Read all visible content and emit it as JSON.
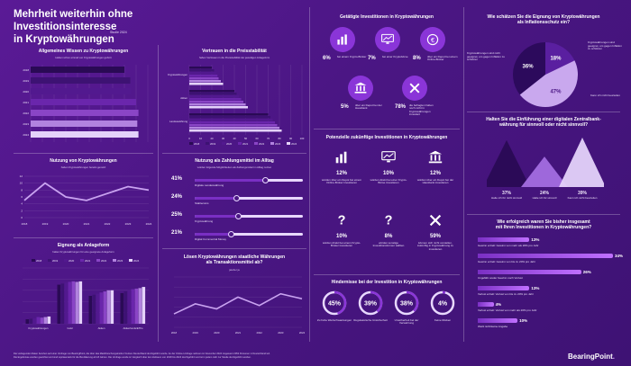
{
  "header": {
    "title_line1": "Mehrheit weiterhin ohne Investitionsinteresse",
    "title_line2": "in Kryptowährungen",
    "study": "Studie 2024"
  },
  "colors": {
    "bg": "#4b1784",
    "accent": "#8a35d8",
    "light": "#e8d8ff",
    "mid": "#b07ae8",
    "dark": "#2c0a5c"
  },
  "footer": {
    "line1": "Die vorliegenden Daten beruhen auf einer Umfrage von BearingPoint, die über das Marktforschungsinstitut YouGov Deutschland durchgeführt wurde. An der Online-Umfrage nahmen im November 2024 insgesamt 2052 Personen in Deutschland teil.",
    "line2": "Die Ergebnisse wurden gewichtet und sind repräsentativ für die Bevölkerung ab 18 Jahren. Die Umfrage wurde im Vergleich über den Zeitraum von 2018 bis 2024 durchgeführt und ist in jedem Jahr zur Studie durchgeführt worden."
  },
  "logo": {
    "name": "BearingPoint",
    "dot": "."
  },
  "panels": {
    "wissen": {
      "title": "Allgemeines Wissen zu Kryptowährungen",
      "sub": "Haben schon einmal von Kryptowährungen gehört"
    },
    "nutzung": {
      "title": "Nutzung von Kryptowährungen",
      "sub": "haben Kryptowährungen bereits genutzt"
    },
    "eignung": {
      "title": "Eignung als Anlageform",
      "sub": "halten Kryptowährungen für eine geeignete Anlageform"
    },
    "vertrauen": {
      "title": "Vertrauen in die Preisstabilität",
      "sub": "haben Vertrauen in die Preisstabilität der jeweiligen Anlageform",
      "legend": [
        "Kryptowährungen",
        "Aktien",
        "Landeswährung"
      ]
    },
    "zahlung": {
      "title": "Nutzung als Zahlungsmittel im Alltag",
      "sub": "würden folgende Möglichkeiten als Zahlungsmittel im Alltag nutzen",
      "items": [
        {
          "pct": "41%",
          "label": "Digitale Landeswährung",
          "level": 0.41
        },
        {
          "pct": "24%",
          "label": "Stablecoins",
          "level": 0.24
        },
        {
          "pct": "25%",
          "label": "Kryptowährung",
          "level": 0.25
        },
        {
          "pct": "21%",
          "label": "Digital Commercial Money",
          "level": 0.21
        }
      ]
    },
    "loesen": {
      "title": "Lösen Kryptowährungen staatliche Währungen",
      "title2": "als Transaktionsmittel ab?",
      "sub": "ja/eher ja"
    },
    "getaetigt": {
      "title": "Getätigte Investitionen in Kryptowährungen",
      "items": [
        {
          "pct": "6%",
          "label": "bei einem Krypto-Broker"
        },
        {
          "pct": "7%",
          "label": "bei einer Kryptobörse"
        },
        {
          "pct": "8%",
          "label": "über ein Depot bei einem Online-Broker"
        },
        {
          "pct": "5%",
          "label": "über ein Depot bei der Hausbank"
        },
        {
          "pct": "78%",
          "label": "die befragten haben noch nicht in Kryptowährungen investiert"
        }
      ]
    },
    "potenziell": {
      "title": "Potenzielle zukünftige Investitionen in Kryptowährungen",
      "items": [
        {
          "pct": "12%",
          "label": "würden über ein Depot bei einem Online-Broker investieren"
        },
        {
          "pct": "10%",
          "label": "würden direkt bei einer Krypto-Börse investieren"
        },
        {
          "pct": "12%",
          "label": "würden über ein Depot bei der Hausbank investieren"
        },
        {
          "pct": "10%",
          "label": "würden direkt bei einem Krypto-Broker investieren"
        },
        {
          "pct": "8%",
          "label": "würden sonstige Investitionsformen wählen"
        },
        {
          "pct": "59%",
          "label": "können sich nicht vorstellen, zukünftig in Kryptowährung zu investieren"
        }
      ]
    },
    "hindernisse": {
      "title": "Hindernisse bei der Investition in Kryptowährungen",
      "items": [
        {
          "pct": "45%",
          "label": "Zu hohe Wertschwankungen",
          "level": 0.45
        },
        {
          "pct": "39%",
          "label": "Regulatorische Unsicherheit",
          "level": 0.39
        },
        {
          "pct": "38%",
          "label": "Unsicherheit bei der Verwahrung",
          "level": 0.38
        },
        {
          "pct": "4%",
          "label": "Keine Risiken",
          "level": 0.04
        }
      ]
    },
    "inflation": {
      "title": "Wie schätzen Sie die Eignung von Kryptowährungen",
      "title2": "als Inflationsschutz ein?",
      "left_note": "Kryptowährungen sind nicht geeignet, um gegen Inflation zu schützen",
      "right_note": "Kryptowährungen sind geeignet, um gegen Inflation zu schützen",
      "bottom_note": "Kann ich nicht beurteilen"
    },
    "zentralbank": {
      "title": "Halten Sie die Einführung einer digitalen Zentralbank-",
      "title2": "währung für sinnvoll oder nicht sinnvoll?",
      "items": [
        {
          "pct": "37%",
          "label": "Halte ich für nicht sinnvoll",
          "level": 0.37
        },
        {
          "pct": "24%",
          "label": "Halte ich für sinnvoll",
          "level": 0.24
        },
        {
          "pct": "39%",
          "label": "Kann ich nicht beurteilen",
          "level": 0.39
        }
      ]
    },
    "erfolg": {
      "title": "Wie erfolgreich waren Sie bisher insgesamt",
      "title2": "mit Ihren Investitionen in Kryptowährungen?",
      "items": [
        {
          "pct": "13%",
          "label": "Gewinn erzielt: Gewinn von mehr als 20% pro Jahr",
          "level": 0.13
        },
        {
          "pct": "34%",
          "label": "Gewinn erzielt: Gewinn von bis zu 20% pro Jahr",
          "level": 0.34
        },
        {
          "pct": "26%",
          "label": "Ungefähr weder Gewinn noch Verlust",
          "level": 0.26
        },
        {
          "pct": "13%",
          "label": "Verlust erzielt: Verlust von bis zu 20% pro Jahr",
          "level": 0.13
        },
        {
          "pct": "4%",
          "label": "Verlust erzielt: Verlust von mehr als 20% pro Jahr",
          "level": 0.04
        },
        {
          "pct": "10%",
          "label": "Weiß nicht/keine Angabe",
          "level": 0.1
        }
      ]
    }
  },
  "chart_data": [
    {
      "type": "bar",
      "title": "Allgemeines Wissen zu Kryptowährungen",
      "categories": [
        "2018",
        "2019",
        "2020",
        "2021",
        "2022",
        "2023",
        "2024"
      ],
      "values": [
        80,
        85,
        86,
        90,
        92,
        91,
        92
      ],
      "xlim": [
        0,
        100
      ]
    },
    {
      "type": "line",
      "title": "Nutzung von Kryptowährungen",
      "x": [
        "2018",
        "2019",
        "2020",
        "2021",
        "2022",
        "2023",
        "2024"
      ],
      "values": [
        5,
        10,
        6,
        5,
        7,
        9,
        8
      ],
      "ylim": [
        0,
        12
      ],
      "yticks": [
        "0",
        "2",
        "4",
        "6",
        "8",
        "10",
        "12"
      ]
    },
    {
      "type": "bar",
      "title": "Eignung als Anlageform",
      "categories": [
        "Kryptowährungen",
        "Gold",
        "Aktien",
        "Aktienfonds/ETFs"
      ],
      "series": [
        {
          "name": "2018",
          "values": [
            8,
            70,
            50,
            55
          ]
        },
        {
          "name": "2019",
          "values": [
            9,
            72,
            52,
            58
          ]
        },
        {
          "name": "2020",
          "values": [
            10,
            74,
            54,
            60
          ]
        },
        {
          "name": "2021",
          "values": [
            12,
            75,
            56,
            62
          ]
        },
        {
          "name": "2022",
          "values": [
            11,
            76,
            58,
            63
          ]
        },
        {
          "name": "2023",
          "values": [
            12,
            75,
            60,
            64
          ]
        },
        {
          "name": "2024",
          "values": [
            13,
            76,
            60,
            66
          ]
        }
      ]
    },
    {
      "type": "bar",
      "title": "Vertrauen in die Preisstabilität",
      "categories": [
        "Kryptowährungen",
        "Aktien",
        "Landeswährung"
      ],
      "series": [
        {
          "name": "2018",
          "values": [
            20,
            40,
            70
          ]
        },
        {
          "name": "2019",
          "values": [
            22,
            42,
            72
          ]
        },
        {
          "name": "2020",
          "values": [
            24,
            44,
            74
          ]
        },
        {
          "name": "2021",
          "values": [
            25,
            46,
            76
          ]
        },
        {
          "name": "2022",
          "values": [
            26,
            48,
            78
          ]
        },
        {
          "name": "2023",
          "values": [
            28,
            50,
            80
          ]
        },
        {
          "name": "2024",
          "values": [
            30,
            52,
            82
          ]
        }
      ],
      "xticks": [
        "0",
        "10",
        "20",
        "30",
        "40",
        "50",
        "60",
        "70",
        "80",
        "90",
        "100"
      ]
    },
    {
      "type": "line",
      "title": "Lösen Kryptowährungen staatliche Währungen als Transaktionsmittel ab?",
      "x": [
        "2018",
        "2019",
        "2020",
        "2021",
        "2022",
        "2023",
        "2024"
      ],
      "values": [
        8,
        14,
        11,
        18,
        13,
        20,
        17
      ],
      "ylim": [
        0,
        30
      ]
    },
    {
      "type": "pie",
      "title": "Wie schätzen Sie die Eignung von Kryptowährungen als Inflationsschutz ein?",
      "categories": [
        "Nicht geeignet",
        "Geeignet",
        "Kann ich nicht beurteilen"
      ],
      "values": [
        36,
        18,
        47
      ],
      "labels": [
        "36%",
        "18%",
        "47%"
      ]
    }
  ]
}
